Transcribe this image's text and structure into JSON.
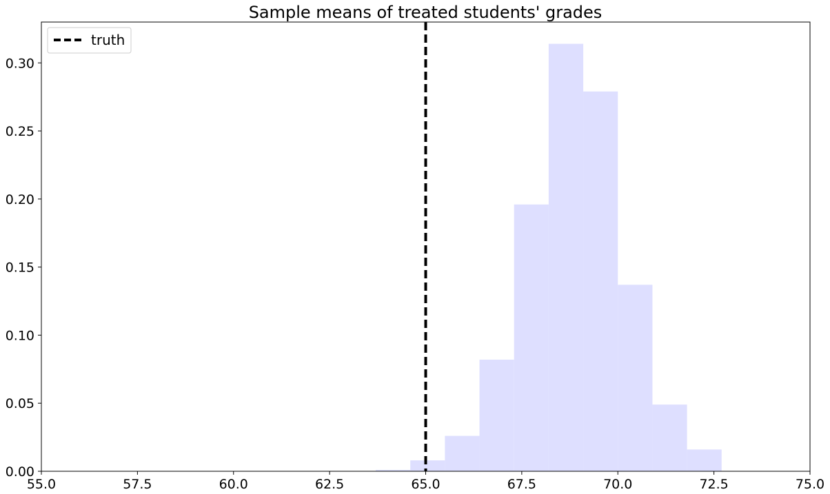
{
  "chart_data": {
    "type": "bar",
    "subtype": "histogram",
    "title": "Sample means of treated students' grades",
    "xlabel": "",
    "ylabel": "",
    "xlim": [
      55.0,
      75.0
    ],
    "ylim": [
      0.0,
      0.33
    ],
    "x_ticks": [
      "55.0",
      "57.5",
      "60.0",
      "62.5",
      "65.0",
      "67.5",
      "70.0",
      "72.5",
      "75.0"
    ],
    "y_ticks": [
      "0.00",
      "0.05",
      "0.10",
      "0.15",
      "0.20",
      "0.25",
      "0.30"
    ],
    "x_tick_values": [
      55.0,
      57.5,
      60.0,
      62.5,
      65.0,
      67.5,
      70.0,
      72.5,
      75.0
    ],
    "y_tick_values": [
      0.0,
      0.05,
      0.1,
      0.15,
      0.2,
      0.25,
      0.3
    ],
    "bin_edges": [
      63.7,
      64.6,
      65.5,
      66.4,
      67.3,
      68.2,
      69.1,
      70.0,
      70.9,
      71.8,
      72.7
    ],
    "bin_heights": [
      0.001,
      0.008,
      0.026,
      0.082,
      0.196,
      0.314,
      0.279,
      0.137,
      0.049,
      0.016
    ],
    "bar_color": "#dedfff",
    "reference_line": {
      "name": "truth",
      "x": 65.0,
      "color": "#000000",
      "style": "dashed"
    },
    "legend": {
      "placement": "top-left",
      "entries": [
        "truth"
      ]
    },
    "grid": false
  }
}
